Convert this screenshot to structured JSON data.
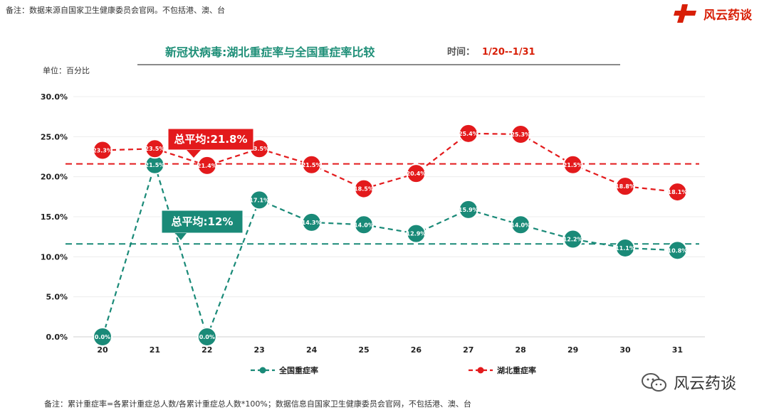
{
  "top_note": "备注：数据来源自国家卫生健康委员会官网。不包括港、澳、台",
  "brand": {
    "name": "风云药谈",
    "color": "#d81e06"
  },
  "title": "新冠状病毒:湖北重症率与全国重症率比较",
  "time_label": "时间：",
  "time_value": "1/20--1/31",
  "unit_label": "单位：百分比",
  "watermark": "风云药谈",
  "bottom_note": "备注：累计重症率=各累计重症总人数/各累计重症总人数*100%；数据信息自国家卫生健康委员会官网，不包括港、澳、台",
  "chart_data": {
    "type": "line",
    "title": "新冠状病毒:湖北重症率与全国重症率比较",
    "xlabel": "",
    "ylabel": "单位：百分比",
    "categories": [
      "20",
      "21",
      "22",
      "23",
      "24",
      "25",
      "26",
      "27",
      "28",
      "29",
      "30",
      "31"
    ],
    "ylim": [
      0,
      30
    ],
    "yticks": [
      "0.0%",
      "5.0%",
      "10.0%",
      "15.0%",
      "20.0%",
      "25.0%",
      "30.0%"
    ],
    "grid": true,
    "legend_position": "bottom",
    "series": [
      {
        "name": "全国重症率",
        "color": "#1a8a78",
        "values": [
          0.0,
          21.5,
          0.0,
          17.1,
          14.3,
          14.0,
          12.9,
          15.9,
          14.0,
          12.2,
          11.1,
          10.8
        ],
        "labels": [
          "0.0%",
          "21.5%",
          "0.0%",
          "17.1%",
          "14.3%",
          "14.0%",
          "12.9%",
          "15.9%",
          "14.0%",
          "12.2%",
          "11.1%",
          "10.8%"
        ]
      },
      {
        "name": "湖北重症率",
        "color": "#e31a1c",
        "values": [
          23.3,
          23.5,
          21.4,
          23.5,
          21.5,
          18.5,
          20.4,
          25.4,
          25.3,
          21.5,
          18.8,
          18.1
        ],
        "labels": [
          "23.3%",
          "23.5%",
          "21.4%",
          "23.5%",
          "21.5%",
          "18.5%",
          "20.4%",
          "25.4%",
          "25.3%",
          "21.5%",
          "18.8%",
          "18.1%"
        ]
      }
    ],
    "reference_lines": [
      {
        "series": "湖北重症率",
        "value": 21.6,
        "color": "#e31a1c"
      },
      {
        "series": "全国重症率",
        "value": 11.6,
        "color": "#1a8a78"
      }
    ],
    "annotations": [
      {
        "text": "总平均:21.8%",
        "series": "湖北重症率",
        "color": "#e31a1c",
        "anchor_value": 23.5,
        "anchor_index": 2
      },
      {
        "text": "总平均:12%",
        "series": "全国重症率",
        "color": "#1a8a78",
        "anchor_value": 14.8,
        "anchor_index": 1.5
      }
    ]
  }
}
